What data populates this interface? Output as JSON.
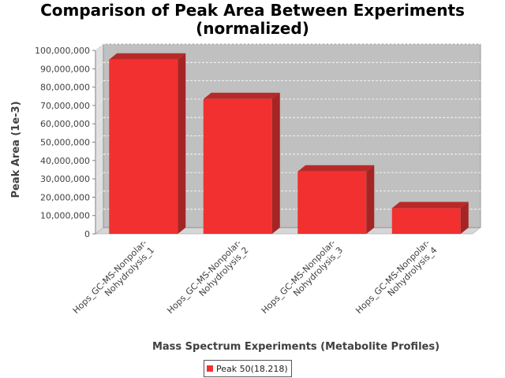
{
  "chart_data": {
    "type": "bar",
    "title_line1": "Comparison of Peak Area Between Experiments",
    "title_line2": "(normalized)",
    "xlabel": "Mass Spectrum Experiments (Metabolite Profiles)",
    "ylabel": "Peak Area (1e-3)",
    "categories": [
      [
        "Hops_GC-MS-Nonpolar-",
        "Nohydrolysis_1"
      ],
      [
        "Hops_GC-MS-Nonpolar-",
        "Nohydrolysis_2"
      ],
      [
        "Hops_GC-MS-Nonpolar-",
        "Nohydrolysis_3"
      ],
      [
        "Hops_GC-MS-Nonpolar-",
        "Nohydrolysis_4"
      ]
    ],
    "series": [
      {
        "name": "Peak 50(18.218)",
        "values": [
          95000000,
          73500000,
          34000000,
          14000000
        ]
      }
    ],
    "ylim": [
      0,
      100000000
    ],
    "yticks": [
      "0",
      "10,000,000",
      "20,000,000",
      "30,000,000",
      "40,000,000",
      "50,000,000",
      "60,000,000",
      "70,000,000",
      "80,000,000",
      "90,000,000",
      "100,000,000"
    ],
    "grid": true,
    "legend_position": "bottom",
    "colors": {
      "bar_front": "#f23030",
      "bar_top": "#b82a2a",
      "bar_side": "#a52525",
      "plot_bg": "#c0c0c0",
      "wall": "#e0e0e0",
      "floor": "#d6d6d6"
    }
  }
}
